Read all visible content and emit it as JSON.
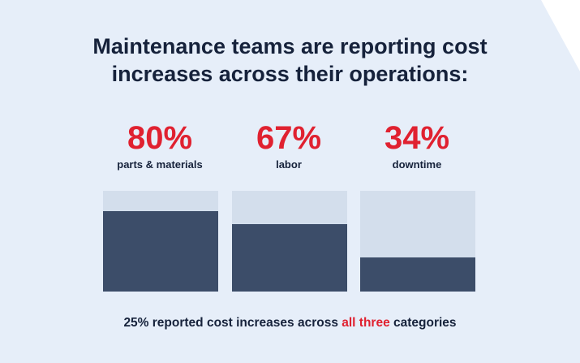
{
  "title": {
    "line1": "Maintenance teams are reporting cost",
    "line2": "increases across their operations:"
  },
  "chart_data": {
    "type": "bar",
    "categories": [
      "parts & materials",
      "labor",
      "downtime"
    ],
    "values": [
      80,
      67,
      34
    ],
    "value_labels": [
      "80%",
      "67%",
      "34%"
    ],
    "ylim": [
      0,
      100
    ],
    "unit": "%",
    "title": "Maintenance teams are reporting cost increases across their operations:",
    "xlabel": "",
    "ylabel": ""
  },
  "footer": {
    "prefix": "25% reported cost increases across ",
    "highlight": "all three",
    "suffix": " categories"
  },
  "colors": {
    "card_background": "#e6eef9",
    "heading_text": "#16223b",
    "accent_red": "#e02130",
    "bar_track": "#d3deec",
    "bar_fill": "#3c4d69"
  }
}
